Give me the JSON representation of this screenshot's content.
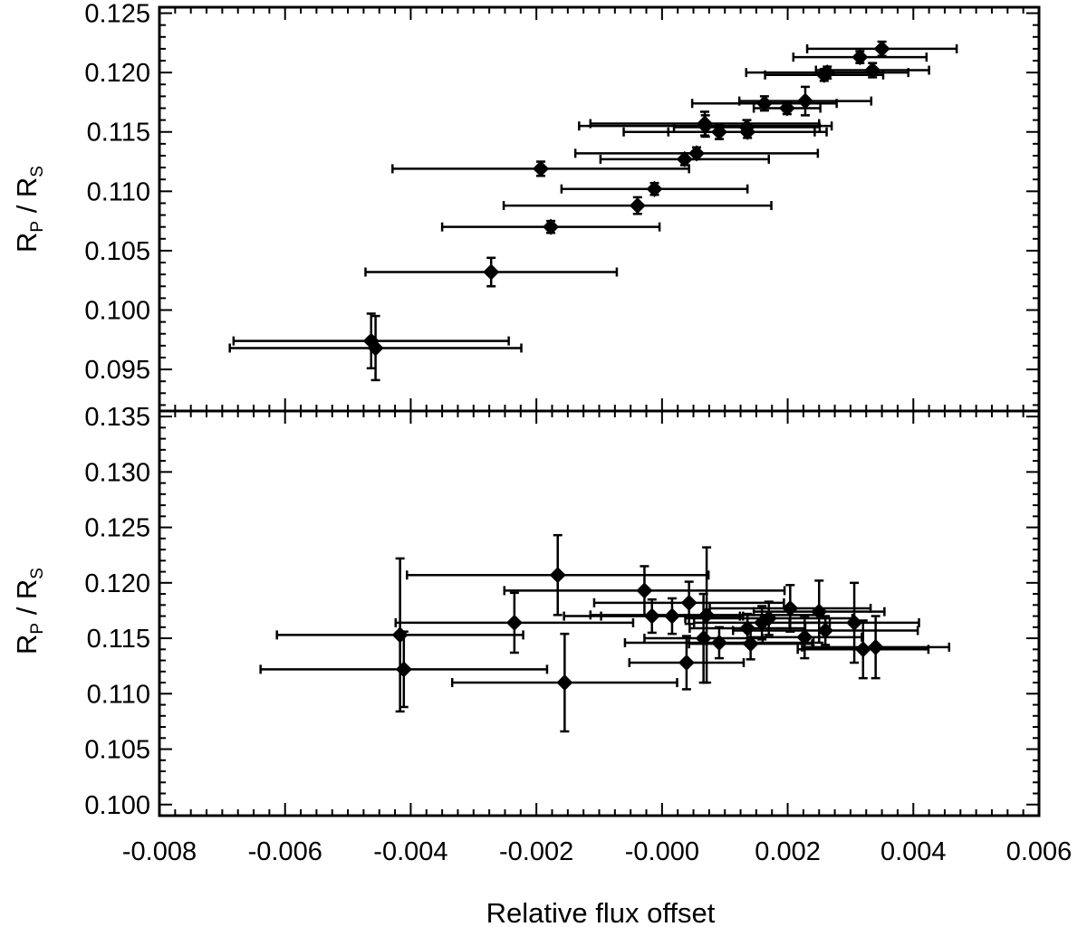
{
  "chart_data": [
    {
      "type": "scatter",
      "panel": "top",
      "xlabel": "",
      "ylabel_main": "R",
      "ylabel_sub1": "P",
      "ylabel_sep": " / ",
      "ylabel_main2": "R",
      "ylabel_sub2": "S",
      "xlim": [
        -0.008,
        0.006
      ],
      "ylim": [
        0.0915,
        0.1255
      ],
      "yticks": [
        0.095,
        0.1,
        0.105,
        0.11,
        0.115,
        0.12,
        0.125
      ],
      "ytick_labels": [
        "0.095",
        "0.100",
        "0.105",
        "0.110",
        "0.115",
        "0.120",
        "0.125"
      ],
      "marker": "diamond",
      "grid": false,
      "points": [
        {
          "x": -0.00463,
          "y": 0.0974,
          "xerr": 0.00219,
          "yerr": 0.0023
        },
        {
          "x": -0.00456,
          "y": 0.0968,
          "xerr": 0.00232,
          "yerr": 0.0027
        },
        {
          "x": -0.00272,
          "y": 0.1032,
          "xerr": 0.002,
          "yerr": 0.0012
        },
        {
          "x": -0.00177,
          "y": 0.107,
          "xerr": 0.00173,
          "yerr": 0.0005
        },
        {
          "x": -0.00039,
          "y": 0.1088,
          "xerr": 0.00213,
          "yerr": 0.0007
        },
        {
          "x": -0.00012,
          "y": 0.1102,
          "xerr": 0.00148,
          "yerr": 0.0005
        },
        {
          "x": -0.00193,
          "y": 0.1119,
          "xerr": 0.00236,
          "yerr": 0.0006
        },
        {
          "x": 0.00055,
          "y": 0.1132,
          "xerr": 0.00193,
          "yerr": 0.0005
        },
        {
          "x": 0.00036,
          "y": 0.1127,
          "xerr": 0.00134,
          "yerr": 0.0005
        },
        {
          "x": 0.00091,
          "y": 0.115,
          "xerr": 0.00152,
          "yerr": 0.0006
        },
        {
          "x": 0.00136,
          "y": 0.115,
          "xerr": 0.00126,
          "yerr": 0.0005
        },
        {
          "x": 0.00135,
          "y": 0.1154,
          "xerr": 0.00116,
          "yerr": 0.0006
        },
        {
          "x": 0.00069,
          "y": 0.1155,
          "xerr": 0.00201,
          "yerr": 0.0009
        },
        {
          "x": 0.00068,
          "y": 0.1157,
          "xerr": 0.00182,
          "yerr": 0.001
        },
        {
          "x": 0.00163,
          "y": 0.1174,
          "xerr": 0.00115,
          "yerr": 0.0006
        },
        {
          "x": 0.00199,
          "y": 0.117,
          "xerr": 0.00053,
          "yerr": 0.0005
        },
        {
          "x": 0.00228,
          "y": 0.1176,
          "xerr": 0.00105,
          "yerr": 0.0012
        },
        {
          "x": 0.00258,
          "y": 0.1198,
          "xerr": 0.00094,
          "yerr": 0.0005
        },
        {
          "x": 0.00263,
          "y": 0.12,
          "xerr": 0.00129,
          "yerr": 0.0005
        },
        {
          "x": 0.00335,
          "y": 0.1202,
          "xerr": 0.0009,
          "yerr": 0.0006
        },
        {
          "x": 0.00315,
          "y": 0.1213,
          "xerr": 0.00106,
          "yerr": 0.0005
        },
        {
          "x": 0.0035,
          "y": 0.122,
          "xerr": 0.00119,
          "yerr": 0.0006
        }
      ]
    },
    {
      "type": "scatter",
      "panel": "bottom",
      "xlabel": "Relative flux offset",
      "ylabel_main": "R",
      "ylabel_sub1": "P",
      "ylabel_sep": " / ",
      "ylabel_main2": "R",
      "ylabel_sub2": "S",
      "xlim": [
        -0.008,
        0.006
      ],
      "ylim": [
        0.099,
        0.1355
      ],
      "xticks": [
        -0.008,
        -0.006,
        -0.004,
        -0.002,
        0.0,
        0.002,
        0.004,
        0.006
      ],
      "xtick_labels": [
        "-0.008",
        "-0.006",
        "-0.004",
        "-0.002",
        "-0.000",
        "0.002",
        "0.004",
        "0.006"
      ],
      "yticks": [
        0.1,
        0.105,
        0.11,
        0.115,
        0.12,
        0.125,
        0.13,
        0.135
      ],
      "ytick_labels": [
        "0.100",
        "0.105",
        "0.110",
        "0.115",
        "0.120",
        "0.125",
        "0.130",
        "0.135"
      ],
      "marker": "diamond",
      "grid": false,
      "points": [
        {
          "x": -0.00417,
          "y": 0.1153,
          "xerr": 0.00196,
          "yerr": 0.0069
        },
        {
          "x": -0.00411,
          "y": 0.1122,
          "xerr": 0.00228,
          "yerr": 0.0034
        },
        {
          "x": -0.00235,
          "y": 0.1164,
          "xerr": 0.00189,
          "yerr": 0.0027
        },
        {
          "x": -0.00166,
          "y": 0.1207,
          "xerr": 0.0024,
          "yerr": 0.0036
        },
        {
          "x": -0.00155,
          "y": 0.111,
          "xerr": 0.00179,
          "yerr": 0.0044
        },
        {
          "x": -0.00028,
          "y": 0.1193,
          "xerr": 0.00223,
          "yerr": 0.0022
        },
        {
          "x": -0.00016,
          "y": 0.117,
          "xerr": 0.0014,
          "yerr": 0.0015
        },
        {
          "x": 0.00043,
          "y": 0.1182,
          "xerr": 0.00151,
          "yerr": 0.0019
        },
        {
          "x": 0.00016,
          "y": 0.117,
          "xerr": 0.00113,
          "yerr": 0.0016
        },
        {
          "x": 0.00071,
          "y": 0.1171,
          "xerr": 0.00185,
          "yerr": 0.0061
        },
        {
          "x": 0.00066,
          "y": 0.115,
          "xerr": 0.00094,
          "yerr": 0.004
        },
        {
          "x": 0.00091,
          "y": 0.1146,
          "xerr": 0.0015,
          "yerr": 0.0014
        },
        {
          "x": 0.00039,
          "y": 0.1128,
          "xerr": 0.00091,
          "yerr": 0.0024
        },
        {
          "x": 0.00136,
          "y": 0.1159,
          "xerr": 0.00092,
          "yerr": 0.0013
        },
        {
          "x": 0.00141,
          "y": 0.1145,
          "xerr": 0.00098,
          "yerr": 0.0014
        },
        {
          "x": 0.00159,
          "y": 0.1164,
          "xerr": 0.00108,
          "yerr": 0.0015
        },
        {
          "x": 0.0017,
          "y": 0.1168,
          "xerr": 0.00133,
          "yerr": 0.0015
        },
        {
          "x": 0.00204,
          "y": 0.1177,
          "xerr": 0.00128,
          "yerr": 0.0021
        },
        {
          "x": 0.00227,
          "y": 0.1151,
          "xerr": 0.00091,
          "yerr": 0.0019
        },
        {
          "x": 0.0025,
          "y": 0.1174,
          "xerr": 0.00104,
          "yerr": 0.0028
        },
        {
          "x": 0.0026,
          "y": 0.1157,
          "xerr": 0.00147,
          "yerr": 0.0013
        },
        {
          "x": 0.00306,
          "y": 0.1164,
          "xerr": 0.00103,
          "yerr": 0.0036
        },
        {
          "x": 0.0032,
          "y": 0.114,
          "xerr": 0.00104,
          "yerr": 0.0026
        },
        {
          "x": 0.0034,
          "y": 0.1142,
          "xerr": 0.00117,
          "yerr": 0.0028
        }
      ]
    }
  ]
}
